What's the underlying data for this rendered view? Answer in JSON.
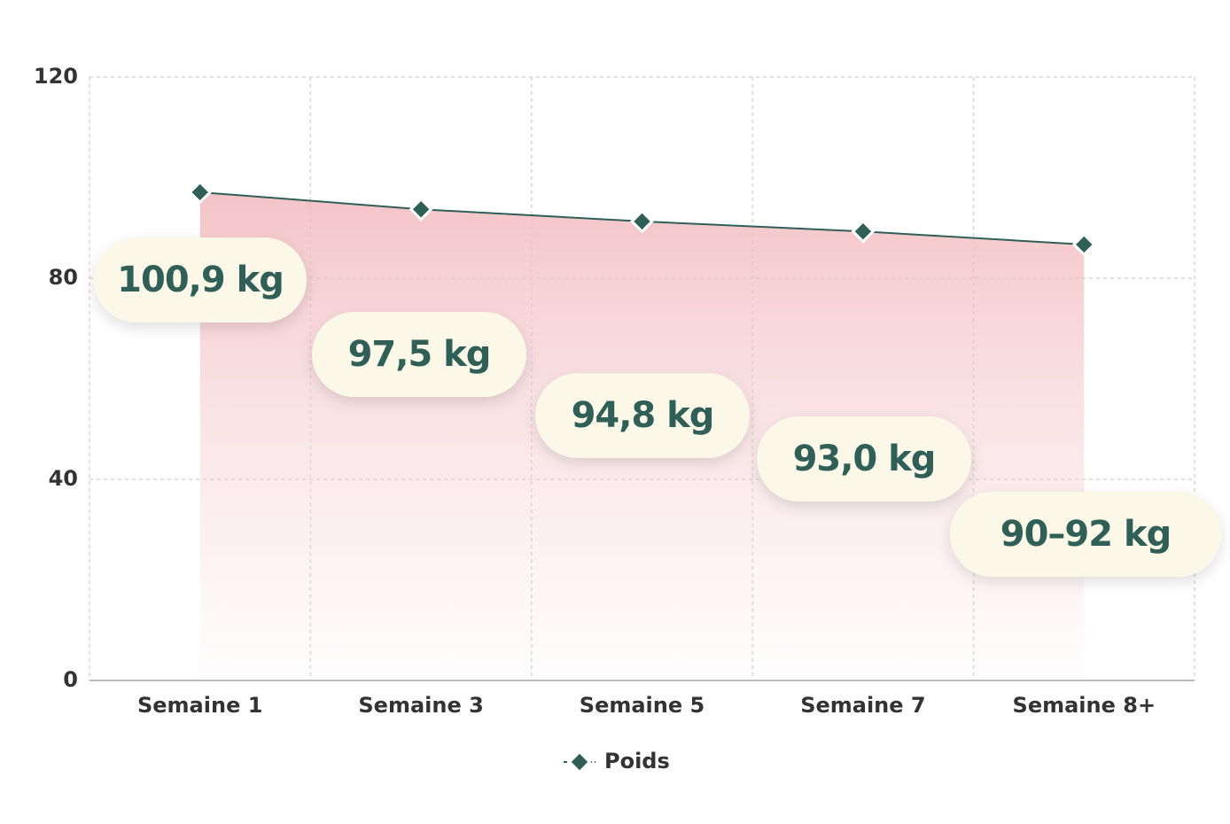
{
  "chart_data": {
    "type": "area",
    "categories": [
      "Semaine 1",
      "Semaine 3",
      "Semaine 5",
      "Semaine 7",
      "Semaine 8+"
    ],
    "series": [
      {
        "name": "Poids",
        "color": "#2f5f57",
        "values": [
          97.1,
          93.7,
          91.3,
          89.3,
          86.7
        ]
      }
    ],
    "annotations": [
      "100,9 kg",
      "97,5 kg",
      "94,8 kg",
      "93,0 kg",
      "90–92 kg"
    ],
    "ylim": [
      0,
      120
    ],
    "yticks": [
      0,
      40,
      80,
      120
    ],
    "grid": true,
    "legend": "bottom"
  }
}
